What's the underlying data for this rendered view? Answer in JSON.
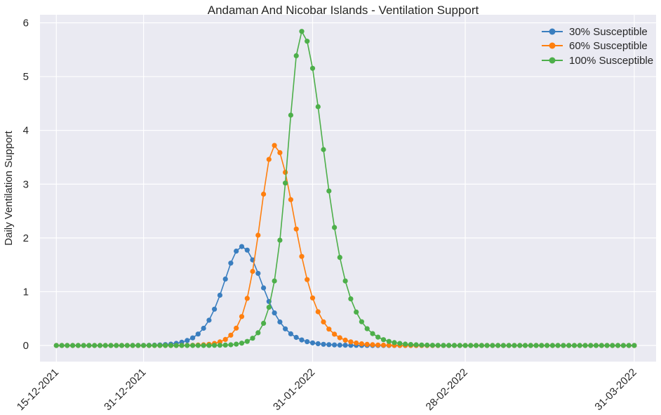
{
  "chart_data": {
    "type": "line",
    "title": "Andaman And Nicobar Islands - Ventilation Support",
    "xlabel": "",
    "ylabel": "Daily Ventilation Support",
    "x_start": "2021-12-15",
    "x_end": "2022-03-31",
    "xlim": [
      "2021-12-12",
      "2022-04-04"
    ],
    "ylim": [
      -0.3,
      6.15
    ],
    "xticks": [
      {
        "date": "2021-12-15",
        "label": "15-12-2021"
      },
      {
        "date": "2021-12-31",
        "label": "31-12-2021"
      },
      {
        "date": "2022-01-31",
        "label": "31-01-2022"
      },
      {
        "date": "2022-02-28",
        "label": "28-02-2022"
      },
      {
        "date": "2022-03-31",
        "label": "31-03-2022"
      }
    ],
    "yticks": [
      0,
      1,
      2,
      3,
      4,
      5,
      6
    ],
    "grid": true,
    "legend_position": "top-right",
    "series": [
      {
        "name": "30% Susceptible",
        "color": "#3a7ebf",
        "peak_date": "2022-01-18",
        "peak_value": 1.84,
        "left_width": 4.6,
        "right_width": 5.2
      },
      {
        "name": "60% Susceptible",
        "color": "#ff7f0e",
        "peak_date": "2022-01-24",
        "peak_value": 3.72,
        "left_width": 3.7,
        "right_width": 5.2
      },
      {
        "name": "100% Susceptible",
        "color": "#4daf4a",
        "peak_date": "2022-01-29",
        "peak_value": 5.84,
        "left_width": 3.5,
        "right_width": 5.6
      }
    ]
  }
}
